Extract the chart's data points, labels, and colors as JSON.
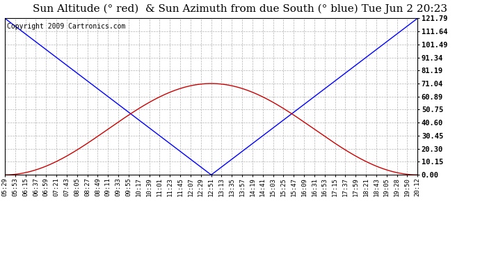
{
  "title": "Sun Altitude (° red)  & Sun Azimuth from due South (° blue) Tue Jun 2 20:23",
  "copyright": "Copyright 2009 Cartronics.com",
  "yticks": [
    0.0,
    10.15,
    20.3,
    30.45,
    40.6,
    50.75,
    60.89,
    71.04,
    81.19,
    91.34,
    101.49,
    111.64,
    121.79
  ],
  "ymax": 121.79,
  "ymin": 0.0,
  "xtick_labels": [
    "05:29",
    "05:53",
    "06:15",
    "06:37",
    "06:59",
    "07:21",
    "07:43",
    "08:05",
    "08:27",
    "08:49",
    "09:11",
    "09:33",
    "09:55",
    "10:17",
    "10:39",
    "11:01",
    "11:23",
    "11:45",
    "12:07",
    "12:29",
    "12:51",
    "13:13",
    "13:35",
    "13:57",
    "14:19",
    "14:41",
    "15:03",
    "15:25",
    "15:47",
    "16:09",
    "16:31",
    "16:53",
    "17:15",
    "17:37",
    "17:59",
    "18:21",
    "18:43",
    "19:05",
    "19:28",
    "19:50",
    "20:12"
  ],
  "blue_color": "#0000FF",
  "red_color": "#CC0000",
  "grid_color": "#AAAAAA",
  "bg_color": "#FFFFFF",
  "title_fontsize": 11,
  "copyright_fontsize": 7,
  "noon_idx": 20,
  "n_ticks": 41,
  "altitude_peak": 71.04,
  "azimuth_max": 121.79,
  "azimuth_min": 0.3
}
